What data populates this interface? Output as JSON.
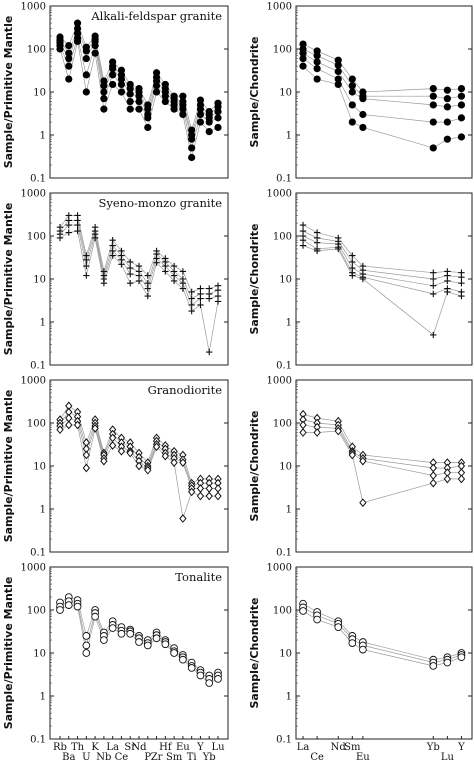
{
  "chart_data": [
    {
      "type": "line",
      "title": "Alkali-feldspar granite",
      "ylabel": "Sample/Primitive Mantle",
      "xlabel": "",
      "yscale": "log",
      "ylim": [
        0.1,
        1000
      ],
      "yticks": [
        "0.1",
        "1",
        "10",
        "100",
        "1000"
      ],
      "marker": "filled-circle",
      "categories": [
        "Rb",
        "Ba",
        "Th",
        "U",
        "K",
        "Nb",
        "La",
        "Ce",
        "Sr",
        "Nd",
        "P",
        "Zr",
        "Hf",
        "Sm",
        "Eu",
        "Ti",
        "Y",
        "Yb",
        "Lu"
      ],
      "series": [
        {
          "values": [
            190,
            120,
            400,
            110,
            200,
            18,
            50,
            32,
            15,
            12,
            5,
            28,
            15,
            8,
            8,
            1.3,
            6.5,
            3.5,
            5.5
          ]
        },
        {
          "values": [
            160,
            80,
            300,
            90,
            170,
            14,
            40,
            25,
            12,
            10,
            4,
            22,
            12,
            7,
            6,
            1.0,
            5,
            3,
            4.5
          ]
        },
        {
          "values": [
            140,
            60,
            230,
            60,
            150,
            10,
            35,
            20,
            9,
            8,
            3,
            18,
            10,
            6,
            5,
            0.8,
            4,
            2.5,
            3.5
          ]
        },
        {
          "values": [
            120,
            40,
            180,
            25,
            120,
            7,
            25,
            15,
            6,
            6,
            2.5,
            14,
            8,
            5,
            4,
            0.5,
            3,
            2,
            2.5
          ]
        },
        {
          "values": [
            100,
            20,
            150,
            10,
            80,
            4,
            15,
            10,
            4,
            4,
            1.5,
            10,
            6,
            4,
            3,
            0.3,
            2,
            1.2,
            1.5
          ]
        }
      ]
    },
    {
      "type": "line",
      "title": "",
      "ylabel": "Sample/Chondrite",
      "yscale": "log",
      "ylim": [
        0.1,
        1000
      ],
      "yticks": [
        "0.1",
        "1",
        "10",
        "100",
        "1000"
      ],
      "marker": "filled-circle",
      "categories": [
        "La",
        "Ce",
        "Nd",
        "Sm",
        "Eu",
        "Yb",
        "Lu",
        "Y"
      ],
      "series": [
        {
          "values": [
            130,
            90,
            55,
            20,
            10,
            12,
            11,
            12
          ]
        },
        {
          "values": [
            100,
            70,
            42,
            14,
            8,
            8,
            7,
            8
          ]
        },
        {
          "values": [
            80,
            50,
            30,
            10,
            7,
            5,
            4.5,
            5
          ]
        },
        {
          "values": [
            60,
            35,
            20,
            5,
            3,
            2,
            2,
            2.5
          ]
        },
        {
          "values": [
            40,
            20,
            15,
            2,
            1.5,
            0.5,
            0.8,
            0.9
          ]
        }
      ]
    },
    {
      "type": "line",
      "title": "Syeno-monzo granite",
      "ylabel": "Sample/Primitive Mantle",
      "yscale": "log",
      "ylim": [
        0.1,
        1000
      ],
      "yticks": [
        "0.1",
        "1",
        "10",
        "100",
        "1000"
      ],
      "marker": "plus",
      "categories": [
        "Rb",
        "Ba",
        "Th",
        "U",
        "K",
        "Nb",
        "La",
        "Ce",
        "Sr",
        "Nd",
        "P",
        "Zr",
        "Hf",
        "Sm",
        "Eu",
        "Ti",
        "Y",
        "Yb",
        "Lu"
      ],
      "series": [
        {
          "values": [
            160,
            300,
            300,
            35,
            160,
            15,
            80,
            45,
            25,
            20,
            12,
            45,
            30,
            20,
            15,
            5,
            6,
            6,
            7
          ]
        },
        {
          "values": [
            130,
            230,
            230,
            28,
            130,
            12,
            60,
            35,
            18,
            15,
            8,
            38,
            25,
            15,
            10,
            3.5,
            4.5,
            4.5,
            5.5
          ]
        },
        {
          "values": [
            110,
            180,
            180,
            20,
            110,
            10,
            45,
            28,
            13,
            12,
            6,
            30,
            20,
            12,
            8,
            2.5,
            3.5,
            3.5,
            4
          ]
        },
        {
          "values": [
            90,
            120,
            130,
            12,
            90,
            8,
            35,
            22,
            8,
            9,
            4,
            24,
            15,
            9,
            6,
            1.8,
            2.5,
            0.2,
            3
          ]
        }
      ]
    },
    {
      "type": "line",
      "title": "",
      "ylabel": "Sample/Chondrite",
      "yscale": "log",
      "ylim": [
        0.1,
        1000
      ],
      "yticks": [
        "0.1",
        "1",
        "10",
        "100",
        "1000"
      ],
      "marker": "plus",
      "categories": [
        "La",
        "Ce",
        "Nd",
        "Sm",
        "Eu",
        "Yb",
        "Lu",
        "Y"
      ],
      "series": [
        {
          "values": [
            180,
            120,
            90,
            35,
            20,
            14,
            15,
            14
          ]
        },
        {
          "values": [
            130,
            90,
            75,
            25,
            16,
            10,
            12,
            11
          ]
        },
        {
          "values": [
            100,
            70,
            65,
            18,
            13,
            7,
            9,
            8
          ]
        },
        {
          "values": [
            80,
            50,
            55,
            14,
            11,
            4.5,
            6,
            5
          ]
        },
        {
          "values": [
            60,
            45,
            50,
            12,
            10,
            0.5,
            5,
            4
          ]
        }
      ]
    },
    {
      "type": "line",
      "title": "Granodiorite",
      "ylabel": "Sample/Primitive Mantle",
      "yscale": "log",
      "ylim": [
        0.1,
        1000
      ],
      "yticks": [
        "0.1",
        "1",
        "10",
        "100",
        "1000"
      ],
      "marker": "open-diamond",
      "categories": [
        "Rb",
        "Ba",
        "Th",
        "U",
        "K",
        "Nb",
        "La",
        "Ce",
        "Sr",
        "Nd",
        "P",
        "Zr",
        "Hf",
        "Sm",
        "Eu",
        "Ti",
        "Y",
        "Yb",
        "Lu"
      ],
      "series": [
        {
          "values": [
            120,
            250,
            180,
            35,
            120,
            20,
            70,
            45,
            35,
            20,
            12,
            45,
            30,
            22,
            18,
            4,
            5,
            5,
            5
          ]
        },
        {
          "values": [
            100,
            180,
            140,
            25,
            100,
            18,
            55,
            35,
            28,
            16,
            10,
            38,
            25,
            18,
            14,
            3.5,
            4,
            4,
            4
          ]
        },
        {
          "values": [
            85,
            130,
            110,
            18,
            85,
            15,
            45,
            28,
            22,
            13,
            9,
            32,
            20,
            15,
            12,
            3,
            3,
            3,
            3
          ]
        },
        {
          "values": [
            70,
            90,
            90,
            9,
            75,
            13,
            30,
            22,
            20,
            10,
            8,
            28,
            17,
            12,
            0.6,
            2.5,
            2,
            2,
            2
          ]
        }
      ]
    },
    {
      "type": "line",
      "title": "",
      "ylabel": "Sample/Chondrite",
      "yscale": "log",
      "ylim": [
        0.1,
        1000
      ],
      "yticks": [
        "0.1",
        "1",
        "10",
        "100",
        "1000"
      ],
      "marker": "open-diamond",
      "categories": [
        "La",
        "Ce",
        "Nd",
        "Sm",
        "Eu",
        "Yb",
        "Lu",
        "Y"
      ],
      "series": [
        {
          "values": [
            160,
            130,
            110,
            28,
            18,
            12,
            12,
            12
          ]
        },
        {
          "values": [
            120,
            100,
            90,
            22,
            15,
            9,
            9,
            10
          ]
        },
        {
          "values": [
            90,
            80,
            75,
            20,
            13,
            6,
            7,
            7
          ]
        },
        {
          "values": [
            60,
            60,
            65,
            18,
            1.4,
            4,
            5,
            5
          ]
        }
      ]
    },
    {
      "type": "line",
      "title": "Tonalite",
      "ylabel": "Sample/Primitive Mantle",
      "yscale": "log",
      "ylim": [
        0.1,
        1000
      ],
      "yticks": [
        "0.1",
        "1",
        "10",
        "100",
        "1000"
      ],
      "xticks_upper": [
        "Rb",
        "Th",
        "K",
        "La",
        "Sr",
        "Nd",
        "Hf",
        "Eu",
        "Y",
        "Lu"
      ],
      "xticks_lower": [
        "Ba",
        "U",
        "Nb",
        "Ce",
        "P",
        "Zr",
        "Sm",
        "Ti",
        "Yb"
      ],
      "marker": "open-circle",
      "categories": [
        "Rb",
        "Ba",
        "Th",
        "U",
        "K",
        "Nb",
        "La",
        "Ce",
        "Sr",
        "Nd",
        "P",
        "Zr",
        "Hf",
        "Sm",
        "Eu",
        "Ti",
        "Y",
        "Yb",
        "Lu"
      ],
      "series": [
        {
          "values": [
            150,
            200,
            170,
            25,
            100,
            30,
            55,
            40,
            35,
            25,
            20,
            30,
            20,
            13,
            9,
            6,
            4,
            3,
            3.5
          ]
        },
        {
          "values": [
            120,
            160,
            140,
            15,
            85,
            25,
            45,
            33,
            32,
            22,
            17,
            26,
            18,
            11,
            8,
            5,
            3.5,
            2.5,
            3
          ]
        },
        {
          "values": [
            100,
            130,
            120,
            10,
            70,
            20,
            38,
            28,
            28,
            18,
            15,
            22,
            16,
            10,
            7,
            4.5,
            3,
            2,
            2.5
          ]
        }
      ]
    },
    {
      "type": "line",
      "title": "",
      "ylabel": "Sample/Chondrite",
      "yscale": "log",
      "ylim": [
        0.1,
        1000
      ],
      "yticks": [
        "0.1",
        "1",
        "10",
        "100",
        "1000"
      ],
      "xticks_upper": [
        "La",
        "Nd",
        "Sm",
        "Yb",
        "Y"
      ],
      "xticks_lower": [
        "Ce",
        "Eu",
        "Lu"
      ],
      "marker": "open-circle",
      "categories": [
        "La",
        "Ce",
        "Nd",
        "Sm",
        "Eu",
        "Yb",
        "Lu",
        "Y"
      ],
      "series": [
        {
          "values": [
            140,
            90,
            55,
            25,
            18,
            7,
            8,
            10
          ]
        },
        {
          "values": [
            115,
            75,
            48,
            21,
            15,
            6,
            7,
            9
          ]
        },
        {
          "values": [
            95,
            60,
            40,
            17,
            12,
            5,
            6,
            8
          ]
        }
      ]
    }
  ]
}
